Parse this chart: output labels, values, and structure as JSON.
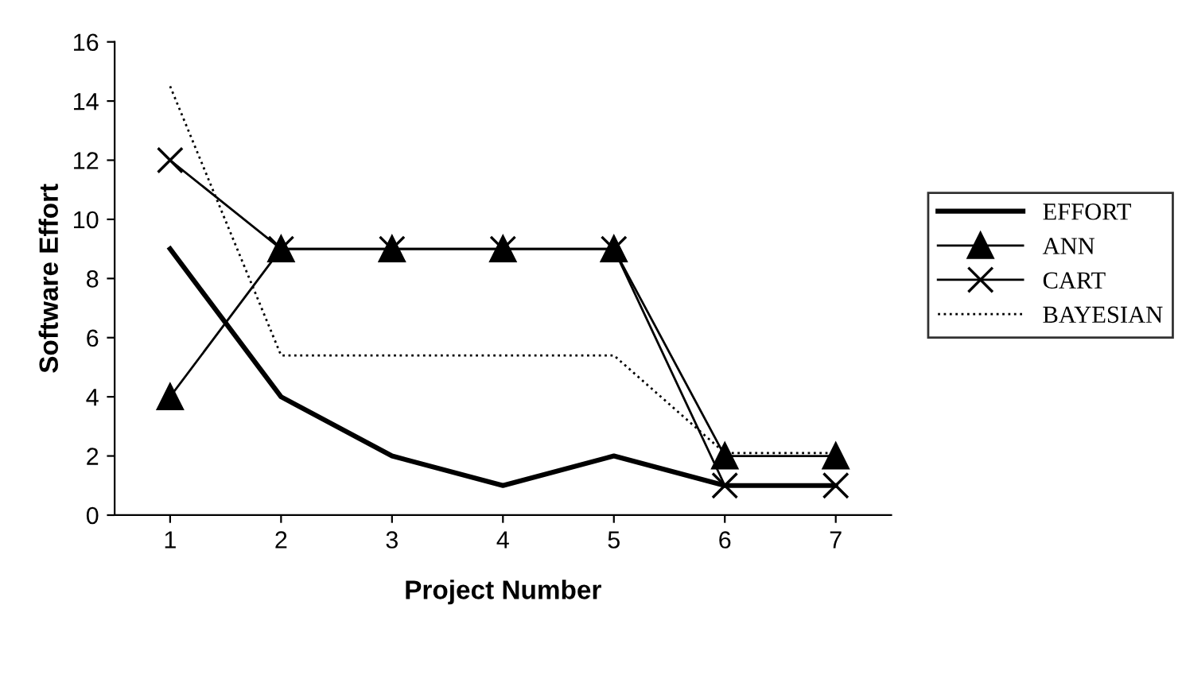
{
  "chart_data": {
    "type": "line",
    "xlabel": "Project Number",
    "ylabel": "Software Effort",
    "categories": [
      "1",
      "2",
      "3",
      "4",
      "5",
      "6",
      "7"
    ],
    "series": [
      {
        "name": "EFFORT",
        "color": "#000000",
        "values": [
          9,
          4,
          2,
          1,
          2,
          1,
          1
        ],
        "marker": "none",
        "line_style": "solid"
      },
      {
        "name": "ANN",
        "color": "#000000",
        "values": [
          4,
          9,
          9,
          9,
          9,
          2,
          2
        ],
        "marker": "triangle",
        "line_style": "solid"
      },
      {
        "name": "CART",
        "color": "#000000",
        "values": [
          12,
          9,
          9,
          9,
          9,
          1,
          1
        ],
        "marker": "cross",
        "line_style": "solid"
      },
      {
        "name": "BAYESIAN",
        "color": "#000000",
        "values": [
          14.5,
          5.4,
          5.4,
          5.4,
          5.4,
          2.1,
          2.1
        ],
        "marker": "none",
        "line_style": "dotted"
      }
    ],
    "ylim": [
      0,
      16
    ],
    "yticks": [
      0,
      2,
      4,
      6,
      8,
      10,
      12,
      14,
      16
    ],
    "grid": false,
    "legend": "right"
  }
}
